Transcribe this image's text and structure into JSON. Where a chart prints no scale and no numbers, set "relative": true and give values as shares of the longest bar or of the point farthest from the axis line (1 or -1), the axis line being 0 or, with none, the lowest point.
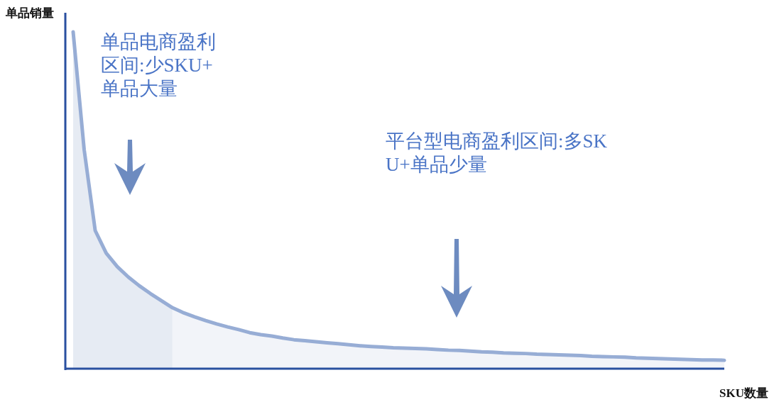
{
  "chart_data": {
    "type": "area",
    "relative": true,
    "xlabel": "SKU数量",
    "ylabel": "单品销量",
    "categories": [
      null,
      null,
      null,
      null,
      null,
      null,
      null,
      null,
      null,
      null,
      null,
      null,
      null,
      null,
      null,
      null,
      null,
      null,
      null,
      null,
      null,
      null,
      null,
      null,
      null,
      null,
      null,
      null,
      null,
      null,
      null,
      null,
      null,
      null,
      null,
      null,
      null,
      null,
      null,
      null,
      null,
      null,
      null,
      null,
      null,
      null,
      null,
      null,
      null,
      null,
      null,
      null,
      null,
      null,
      null,
      null,
      null,
      null,
      null,
      null
    ],
    "series": [
      {
        "color": "#e6ebf3",
        "values": [
          1.0,
          0.65,
          0.41,
          0.343,
          0.303,
          0.272,
          0.246,
          0.223,
          0.202,
          0.181,
          null,
          null,
          null,
          null,
          null,
          null,
          null,
          null,
          null,
          null,
          null,
          null,
          null,
          null,
          null,
          null,
          null,
          null,
          null,
          null,
          null,
          null,
          null,
          null,
          null,
          null,
          null,
          null,
          null,
          null,
          null,
          null,
          null,
          null,
          null,
          null,
          null,
          null,
          null,
          null,
          null,
          null,
          null,
          null,
          null,
          null,
          null,
          null,
          null,
          null
        ]
      },
      {
        "color": "#f2f4f9",
        "values": [
          null,
          null,
          null,
          null,
          null,
          null,
          null,
          null,
          null,
          0.181,
          0.166,
          0.154,
          0.143,
          0.133,
          0.124,
          0.116,
          0.107,
          0.101,
          0.097,
          0.091,
          0.086,
          0.083,
          0.08,
          0.077,
          0.074,
          0.071,
          0.068,
          0.066,
          0.064,
          0.062,
          0.061,
          0.06,
          0.059,
          0.057,
          0.055,
          0.054,
          0.052,
          0.05,
          0.049,
          0.047,
          0.046,
          0.045,
          0.043,
          0.042,
          0.041,
          0.04,
          0.039,
          0.037,
          0.036,
          0.035,
          0.034,
          0.032,
          0.031,
          0.03,
          0.029,
          0.028,
          0.027,
          0.026,
          0.026,
          0.025
        ]
      },
      {
        "type": "line",
        "color": "#97add5",
        "values": [
          1.0,
          0.65,
          0.41,
          0.343,
          0.303,
          0.272,
          0.246,
          0.223,
          0.202,
          0.181,
          0.166,
          0.154,
          0.143,
          0.133,
          0.124,
          0.116,
          0.107,
          0.101,
          0.097,
          0.091,
          0.086,
          0.083,
          0.08,
          0.077,
          0.074,
          0.071,
          0.068,
          0.066,
          0.064,
          0.062,
          0.061,
          0.06,
          0.059,
          0.057,
          0.055,
          0.054,
          0.052,
          0.05,
          0.049,
          0.047,
          0.046,
          0.045,
          0.043,
          0.042,
          0.041,
          0.04,
          0.039,
          0.037,
          0.036,
          0.035,
          0.034,
          0.032,
          0.031,
          0.03,
          0.029,
          0.028,
          0.027,
          0.026,
          0.026,
          0.025
        ]
      }
    ],
    "annotations": [
      "单品电商盈利区间:少SKU+单品大量",
      "平台型电商盈利区间:多SKU+单品少量"
    ]
  }
}
